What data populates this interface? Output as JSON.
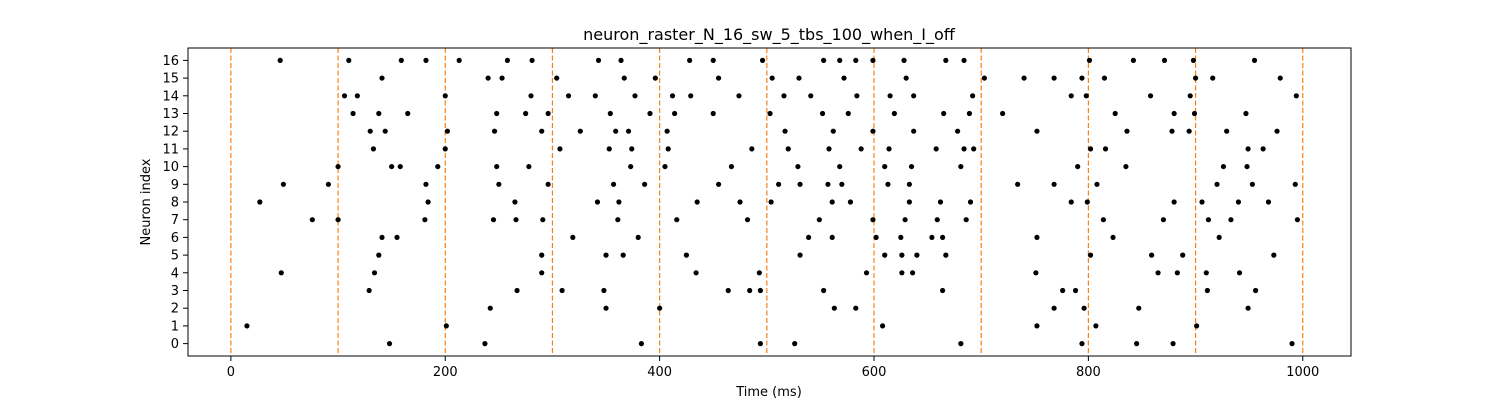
{
  "chart_data": {
    "type": "scatter",
    "title": "neuron_raster_N_16_sw_5_tbs_100_when_I_off",
    "xlabel": "Time (ms)",
    "ylabel": "Neuron index",
    "xlim": [
      -40,
      1045
    ],
    "ylim": [
      -0.7,
      16.7
    ],
    "xticks": [
      0,
      200,
      400,
      600,
      800,
      1000
    ],
    "yticks": [
      0,
      1,
      2,
      3,
      4,
      5,
      6,
      7,
      8,
      9,
      10,
      11,
      12,
      13,
      14,
      15,
      16
    ],
    "marker_color": "#000000",
    "vline_color": "#ff7f0e",
    "vlines": [
      0,
      100,
      200,
      300,
      400,
      500,
      600,
      700,
      800,
      900,
      1000
    ],
    "series": [
      {
        "neuron": 16,
        "spike_times": [
          46,
          110,
          159,
          182,
          213,
          258,
          281,
          343,
          364,
          428,
          450,
          496,
          553,
          568,
          583,
          599,
          628,
          667,
          684,
          801,
          842,
          871,
          898,
          955
        ]
      },
      {
        "neuron": 15,
        "spike_times": [
          141,
          240,
          253,
          304,
          367,
          396,
          455,
          505,
          530,
          572,
          630,
          703,
          740,
          768,
          794,
          815,
          900,
          916,
          979
        ]
      },
      {
        "neuron": 14,
        "spike_times": [
          106,
          118,
          200,
          280,
          315,
          340,
          377,
          412,
          429,
          474,
          516,
          541,
          584,
          615,
          637,
          692,
          784,
          798,
          858,
          895,
          994
        ]
      },
      {
        "neuron": 13,
        "spike_times": [
          114,
          138,
          165,
          248,
          275,
          296,
          354,
          391,
          414,
          450,
          503,
          552,
          576,
          619,
          665,
          689,
          720,
          825,
          880,
          899,
          947
        ]
      },
      {
        "neuron": 12,
        "spike_times": [
          130,
          144,
          202,
          246,
          290,
          326,
          359,
          371,
          407,
          517,
          562,
          599,
          637,
          678,
          752,
          836,
          878,
          894,
          929,
          976
        ]
      },
      {
        "neuron": 11,
        "spike_times": [
          133,
          200,
          307,
          353,
          374,
          408,
          486,
          520,
          558,
          588,
          614,
          658,
          684,
          693,
          802,
          816,
          949,
          963
        ]
      },
      {
        "neuron": 10,
        "spike_times": [
          100,
          150,
          158,
          193,
          248,
          278,
          373,
          405,
          467,
          529,
          568,
          610,
          635,
          681,
          790,
          835,
          926,
          948
        ]
      },
      {
        "neuron": 9,
        "spike_times": [
          49,
          91,
          182,
          250,
          296,
          357,
          386,
          455,
          511,
          531,
          557,
          570,
          613,
          633,
          734,
          768,
          808,
          920,
          953,
          993
        ]
      },
      {
        "neuron": 8,
        "spike_times": [
          27,
          184,
          265,
          342,
          362,
          435,
          475,
          504,
          561,
          578,
          633,
          662,
          690,
          784,
          799,
          880,
          906,
          940,
          968
        ]
      },
      {
        "neuron": 7,
        "spike_times": [
          76,
          100,
          181,
          245,
          266,
          291,
          361,
          416,
          482,
          549,
          599,
          629,
          659,
          686,
          814,
          870,
          912,
          933,
          995
        ]
      },
      {
        "neuron": 6,
        "spike_times": [
          141,
          155,
          319,
          380,
          539,
          561,
          602,
          625,
          654,
          664,
          752,
          823,
          922
        ]
      },
      {
        "neuron": 5,
        "spike_times": [
          138,
          290,
          350,
          366,
          425,
          531,
          610,
          626,
          640,
          667,
          802,
          859,
          888,
          973
        ]
      },
      {
        "neuron": 4,
        "spike_times": [
          47,
          134,
          290,
          434,
          493,
          593,
          626,
          636,
          751,
          865,
          883,
          910,
          941
        ]
      },
      {
        "neuron": 3,
        "spike_times": [
          129,
          267,
          309,
          348,
          464,
          484,
          494,
          553,
          664,
          776,
          788,
          911,
          956
        ]
      },
      {
        "neuron": 2,
        "spike_times": [
          242,
          350,
          400,
          563,
          583,
          768,
          796,
          847,
          949
        ]
      },
      {
        "neuron": 1,
        "spike_times": [
          15,
          201,
          608,
          752,
          807,
          901
        ]
      },
      {
        "neuron": 0,
        "spike_times": [
          148,
          237,
          383,
          494,
          526,
          681,
          794,
          845,
          879,
          990
        ]
      }
    ]
  }
}
